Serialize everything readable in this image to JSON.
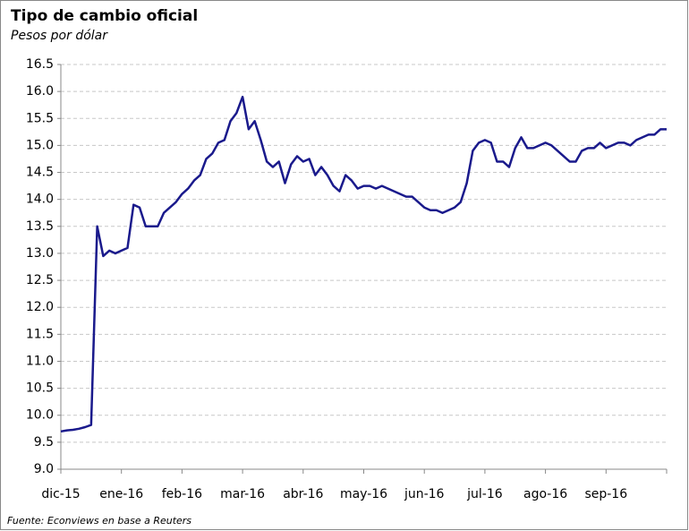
{
  "chart_data": {
    "type": "line",
    "title": "Tipo de cambio oficial",
    "subtitle": "Pesos por dólar",
    "source": "Fuente: Econviews en base a Reuters",
    "categories": [
      "dic-15",
      null,
      null,
      null,
      null,
      null,
      null,
      null,
      null,
      null,
      "ene-16",
      null,
      null,
      null,
      null,
      null,
      null,
      null,
      null,
      null,
      "feb-16",
      null,
      null,
      null,
      null,
      null,
      null,
      null,
      null,
      null,
      "mar-16",
      null,
      null,
      null,
      null,
      null,
      null,
      null,
      null,
      null,
      "abr-16",
      null,
      null,
      null,
      null,
      null,
      null,
      null,
      null,
      null,
      "may-16",
      null,
      null,
      null,
      null,
      null,
      null,
      null,
      null,
      null,
      "jun-16",
      null,
      null,
      null,
      null,
      null,
      null,
      null,
      null,
      null,
      "jul-16",
      null,
      null,
      null,
      null,
      null,
      null,
      null,
      null,
      null,
      "ago-16",
      null,
      null,
      null,
      null,
      null,
      null,
      null,
      null,
      null,
      "sep-16",
      null,
      null,
      null,
      null,
      null,
      null,
      null,
      null,
      null,
      null
    ],
    "series": [
      {
        "name": "Tipo de cambio oficial",
        "color": "#1a1a8c",
        "values": [
          9.7,
          9.72,
          9.73,
          9.75,
          9.78,
          9.82,
          13.5,
          12.95,
          13.05,
          13.0,
          13.05,
          13.1,
          13.9,
          13.85,
          13.5,
          13.5,
          13.5,
          13.75,
          13.85,
          13.95,
          14.1,
          14.2,
          14.35,
          14.45,
          14.75,
          14.85,
          15.05,
          15.1,
          15.45,
          15.6,
          15.9,
          15.3,
          15.45,
          15.1,
          14.7,
          14.6,
          14.7,
          14.3,
          14.65,
          14.8,
          14.7,
          14.75,
          14.45,
          14.6,
          14.45,
          14.25,
          14.15,
          14.45,
          14.35,
          14.2,
          14.25,
          14.25,
          14.2,
          14.25,
          14.2,
          14.15,
          14.1,
          14.05,
          14.05,
          13.95,
          13.85,
          13.8,
          13.8,
          13.75,
          13.8,
          13.85,
          13.95,
          14.3,
          14.9,
          15.05,
          15.1,
          15.05,
          14.7,
          14.7,
          14.6,
          14.95,
          15.15,
          14.95,
          14.95,
          15.0,
          15.05,
          15.0,
          14.9,
          14.8,
          14.7,
          14.7,
          14.9,
          14.95,
          14.95,
          15.05,
          14.95,
          15.0,
          15.05,
          15.05,
          15.0,
          15.1,
          15.15,
          15.2,
          15.2,
          15.3,
          15.3
        ]
      }
    ],
    "ylim": [
      9,
      16.5
    ],
    "yticks": [
      {
        "value": 9,
        "label": "9.0"
      },
      9.5,
      {
        "value": 10,
        "label": "10.0"
      },
      10.5,
      {
        "value": 11,
        "label": "11.0"
      },
      11.5,
      {
        "value": 12,
        "label": "12.0"
      },
      12.5,
      {
        "value": 13,
        "label": "13.0"
      },
      13.5,
      {
        "value": 14,
        "label": "14.0"
      },
      14.5,
      {
        "value": 15,
        "label": "15.0"
      },
      15.5,
      {
        "value": 16,
        "label": "16.0"
      },
      16.5
    ],
    "grid": true
  }
}
